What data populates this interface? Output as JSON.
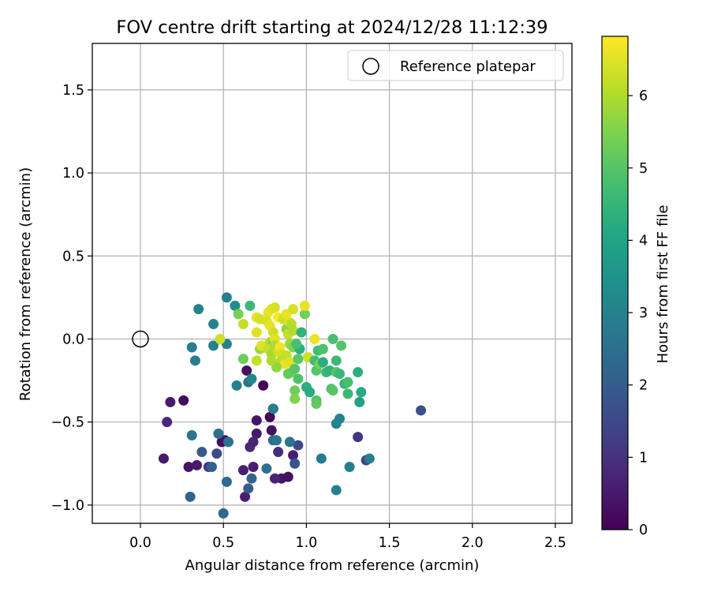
{
  "chart_data": {
    "type": "scatter",
    "title": "FOV centre drift starting at 2024/12/28 11:12:39",
    "xlabel": "Angular distance from reference (arcmin)",
    "ylabel": "Rotation from reference (arcmin)",
    "xlim": [
      -0.29,
      2.6
    ],
    "ylim": [
      -1.11,
      1.78
    ],
    "xticks": [
      0.0,
      0.5,
      1.0,
      1.5,
      2.0,
      2.5
    ],
    "xtick_labels": [
      "0.0",
      "0.5",
      "1.0",
      "1.5",
      "2.0",
      "2.5"
    ],
    "yticks": [
      -1.0,
      -0.5,
      0.0,
      0.5,
      1.0,
      1.5
    ],
    "ytick_labels": [
      "−1.0",
      "−0.5",
      "0.0",
      "0.5",
      "1.0",
      "1.5"
    ],
    "grid": true,
    "legend": {
      "position": "upper right",
      "entries": [
        {
          "label": "Reference platepar",
          "marker": "open-circle"
        }
      ]
    },
    "reference_point": {
      "x": 0.0,
      "y": 0.0
    },
    "colorbar": {
      "label": "Hours from first FF file",
      "colormap": "viridis",
      "range": [
        0,
        6.82
      ],
      "ticks": [
        0,
        1,
        2,
        3,
        4,
        5,
        6
      ],
      "tick_labels": [
        "0",
        "1",
        "2",
        "3",
        "4",
        "5",
        "6"
      ]
    },
    "points": [
      {
        "x": 0.85,
        "y": -0.84,
        "t": 0.4
      },
      {
        "x": 0.89,
        "y": -0.83,
        "t": 0.3
      },
      {
        "x": 0.92,
        "y": -0.7,
        "t": 0.6
      },
      {
        "x": 0.7,
        "y": -0.57,
        "t": 0.5
      },
      {
        "x": 0.7,
        "y": -0.49,
        "t": 0.4
      },
      {
        "x": 0.79,
        "y": -0.55,
        "t": 0.3
      },
      {
        "x": 0.78,
        "y": -0.47,
        "t": 0.1
      },
      {
        "x": 0.8,
        "y": -0.42,
        "t": 0.2
      },
      {
        "x": 0.74,
        "y": -0.28,
        "t": 0.1
      },
      {
        "x": 0.64,
        "y": -0.19,
        "t": 0.3
      },
      {
        "x": 0.18,
        "y": -0.38,
        "t": 0.5
      },
      {
        "x": 0.26,
        "y": -0.37,
        "t": 0.2
      },
      {
        "x": 0.16,
        "y": -0.5,
        "t": 0.8
      },
      {
        "x": 0.14,
        "y": -0.72,
        "t": 0.5
      },
      {
        "x": 0.29,
        "y": -0.77,
        "t": 0.4
      },
      {
        "x": 0.34,
        "y": -0.76,
        "t": 0.5
      },
      {
        "x": 0.41,
        "y": -0.77,
        "t": 1.2
      },
      {
        "x": 0.49,
        "y": -0.62,
        "t": 0.2
      },
      {
        "x": 0.51,
        "y": -0.61,
        "t": 0.3
      },
      {
        "x": 0.62,
        "y": -0.79,
        "t": 0.6
      },
      {
        "x": 0.68,
        "y": -0.77,
        "t": 0.6
      },
      {
        "x": 0.63,
        "y": -0.95,
        "t": 0.6
      },
      {
        "x": 0.66,
        "y": -0.65,
        "t": 0.8
      },
      {
        "x": 0.68,
        "y": -0.62,
        "t": 0.7
      },
      {
        "x": 0.81,
        "y": -0.84,
        "t": 0.7
      },
      {
        "x": 0.83,
        "y": -0.68,
        "t": 0.9
      },
      {
        "x": 1.31,
        "y": -0.59,
        "t": 1.1
      },
      {
        "x": 1.36,
        "y": -0.73,
        "t": 1.3
      },
      {
        "x": 0.93,
        "y": -0.75,
        "t": 1.8
      },
      {
        "x": 0.95,
        "y": -0.64,
        "t": 1.5
      },
      {
        "x": 0.46,
        "y": -0.69,
        "t": 1.6
      },
      {
        "x": 0.37,
        "y": -0.68,
        "t": 2.0
      },
      {
        "x": 0.43,
        "y": -0.77,
        "t": 2.1
      },
      {
        "x": 0.3,
        "y": -0.95,
        "t": 2.2
      },
      {
        "x": 0.5,
        "y": -1.05,
        "t": 2.3
      },
      {
        "x": 0.52,
        "y": -0.86,
        "t": 2.4
      },
      {
        "x": 0.65,
        "y": -0.9,
        "t": 2.0
      },
      {
        "x": 0.67,
        "y": -0.84,
        "t": 2.2
      },
      {
        "x": 0.76,
        "y": -0.78,
        "t": 2.5
      },
      {
        "x": 0.9,
        "y": -0.62,
        "t": 2.6
      },
      {
        "x": 0.8,
        "y": -0.61,
        "t": 2.4
      },
      {
        "x": 1.69,
        "y": -0.43,
        "t": 1.7
      },
      {
        "x": 0.31,
        "y": -0.58,
        "t": 2.6
      },
      {
        "x": 0.47,
        "y": -0.57,
        "t": 2.5
      },
      {
        "x": 0.53,
        "y": -0.62,
        "t": 2.6
      },
      {
        "x": 1.09,
        "y": -0.72,
        "t": 2.8
      },
      {
        "x": 1.18,
        "y": -0.91,
        "t": 3.0
      },
      {
        "x": 1.26,
        "y": -0.77,
        "t": 2.9
      },
      {
        "x": 1.38,
        "y": -0.72,
        "t": 2.9
      },
      {
        "x": 1.18,
        "y": -0.51,
        "t": 3.1
      },
      {
        "x": 1.2,
        "y": -0.48,
        "t": 3.0
      },
      {
        "x": 0.8,
        "y": -0.42,
        "t": 2.9
      },
      {
        "x": 0.82,
        "y": -0.61,
        "t": 2.7
      },
      {
        "x": 0.58,
        "y": -0.28,
        "t": 3.0
      },
      {
        "x": 0.65,
        "y": -0.26,
        "t": 2.6
      },
      {
        "x": 0.67,
        "y": -0.24,
        "t": 3.1
      },
      {
        "x": 0.33,
        "y": -0.13,
        "t": 2.9
      },
      {
        "x": 0.31,
        "y": -0.05,
        "t": 2.9
      },
      {
        "x": 0.44,
        "y": -0.04,
        "t": 3.0
      },
      {
        "x": 0.52,
        "y": -0.03,
        "t": 3.0
      },
      {
        "x": 0.44,
        "y": 0.09,
        "t": 3.0
      },
      {
        "x": 0.35,
        "y": 0.18,
        "t": 3.0
      },
      {
        "x": 0.52,
        "y": 0.25,
        "t": 2.9
      },
      {
        "x": 0.57,
        "y": 0.2,
        "t": 3.3
      },
      {
        "x": 0.66,
        "y": 0.2,
        "t": 4.6
      },
      {
        "x": 0.59,
        "y": 0.15,
        "t": 5.4
      },
      {
        "x": 0.62,
        "y": 0.09,
        "t": 6.2
      },
      {
        "x": 0.48,
        "y": 0.0,
        "t": 6.3
      },
      {
        "x": 0.62,
        "y": -0.12,
        "t": 5.3
      },
      {
        "x": 0.7,
        "y": -0.13,
        "t": 6.2
      },
      {
        "x": 0.7,
        "y": 0.13,
        "t": 6.6
      },
      {
        "x": 0.72,
        "y": 0.12,
        "t": 6.4
      },
      {
        "x": 0.7,
        "y": 0.04,
        "t": 6.5
      },
      {
        "x": 0.72,
        "y": -0.06,
        "t": 5.8
      },
      {
        "x": 0.73,
        "y": -0.04,
        "t": 6.5
      },
      {
        "x": 0.77,
        "y": 0.16,
        "t": 6.6
      },
      {
        "x": 0.79,
        "y": 0.18,
        "t": 6.5
      },
      {
        "x": 0.81,
        "y": 0.19,
        "t": 6.4
      },
      {
        "x": 0.83,
        "y": 0.13,
        "t": 6.8
      },
      {
        "x": 0.76,
        "y": 0.11,
        "t": 6.4
      },
      {
        "x": 0.78,
        "y": 0.08,
        "t": 6.6
      },
      {
        "x": 0.8,
        "y": 0.04,
        "t": 6.3
      },
      {
        "x": 0.78,
        "y": -0.02,
        "t": 6.1
      },
      {
        "x": 0.8,
        "y": -0.02,
        "t": 5.6
      },
      {
        "x": 0.81,
        "y": 0.0,
        "t": 6.5
      },
      {
        "x": 0.77,
        "y": -0.06,
        "t": 6.2
      },
      {
        "x": 0.79,
        "y": -0.09,
        "t": 5.9
      },
      {
        "x": 0.81,
        "y": -0.04,
        "t": 6.0
      },
      {
        "x": 0.83,
        "y": -0.08,
        "t": 6.3
      },
      {
        "x": 0.84,
        "y": -0.05,
        "t": 6.7
      },
      {
        "x": 0.85,
        "y": -0.09,
        "t": 6.4
      },
      {
        "x": 0.85,
        "y": -0.13,
        "t": 6.1
      },
      {
        "x": 0.87,
        "y": -0.15,
        "t": 6.6
      },
      {
        "x": 0.82,
        "y": -0.17,
        "t": 5.7
      },
      {
        "x": 0.79,
        "y": -0.13,
        "t": 6.0
      },
      {
        "x": 0.86,
        "y": 0.12,
        "t": 6.3
      },
      {
        "x": 0.88,
        "y": 0.15,
        "t": 6.6
      },
      {
        "x": 0.88,
        "y": 0.06,
        "t": 5.6
      },
      {
        "x": 0.9,
        "y": 0.1,
        "t": 6.5
      },
      {
        "x": 0.91,
        "y": 0.09,
        "t": 6.1
      },
      {
        "x": 0.92,
        "y": 0.18,
        "t": 6.4
      },
      {
        "x": 0.89,
        "y": 0.03,
        "t": 6.2
      },
      {
        "x": 0.92,
        "y": 0.05,
        "t": 6.0
      },
      {
        "x": 0.9,
        "y": -0.03,
        "t": 5.8
      },
      {
        "x": 0.92,
        "y": -0.05,
        "t": 5.5
      },
      {
        "x": 0.88,
        "y": -0.1,
        "t": 6.2
      },
      {
        "x": 0.9,
        "y": -0.14,
        "t": 6.5
      },
      {
        "x": 0.91,
        "y": -0.2,
        "t": 5.6
      },
      {
        "x": 0.89,
        "y": -0.21,
        "t": 5.2
      },
      {
        "x": 0.93,
        "y": -0.18,
        "t": 5.0
      },
      {
        "x": 0.95,
        "y": -0.24,
        "t": 4.9
      },
      {
        "x": 0.93,
        "y": -0.31,
        "t": 5.3
      },
      {
        "x": 0.93,
        "y": -0.36,
        "t": 5.5
      },
      {
        "x": 0.95,
        "y": -0.12,
        "t": 5.1
      },
      {
        "x": 0.96,
        "y": -0.06,
        "t": 4.3
      },
      {
        "x": 0.94,
        "y": -0.03,
        "t": 4.8
      },
      {
        "x": 0.97,
        "y": 0.04,
        "t": 4.4
      },
      {
        "x": 0.99,
        "y": 0.15,
        "t": 5.4
      },
      {
        "x": 0.99,
        "y": 0.2,
        "t": 6.6
      },
      {
        "x": 1.01,
        "y": -0.11,
        "t": 6.3
      },
      {
        "x": 1.0,
        "y": -0.29,
        "t": 4.3
      },
      {
        "x": 1.02,
        "y": -0.32,
        "t": 4.2
      },
      {
        "x": 1.05,
        "y": 0.0,
        "t": 6.6
      },
      {
        "x": 1.05,
        "y": -0.13,
        "t": 4.7
      },
      {
        "x": 1.07,
        "y": -0.07,
        "t": 4.7
      },
      {
        "x": 1.06,
        "y": -0.19,
        "t": 5.0
      },
      {
        "x": 1.08,
        "y": -0.15,
        "t": 5.4
      },
      {
        "x": 1.06,
        "y": -0.37,
        "t": 4.9
      },
      {
        "x": 1.06,
        "y": -0.39,
        "t": 5.2
      },
      {
        "x": 1.1,
        "y": -0.06,
        "t": 4.9
      },
      {
        "x": 1.1,
        "y": -0.14,
        "t": 4.3
      },
      {
        "x": 1.12,
        "y": -0.2,
        "t": 4.6
      },
      {
        "x": 1.14,
        "y": -0.19,
        "t": 4.4
      },
      {
        "x": 1.15,
        "y": -0.3,
        "t": 4.9
      },
      {
        "x": 1.16,
        "y": -0.31,
        "t": 5.0
      },
      {
        "x": 1.16,
        "y": 0.0,
        "t": 4.8
      },
      {
        "x": 1.18,
        "y": -0.13,
        "t": 4.6
      },
      {
        "x": 1.18,
        "y": -0.2,
        "t": 5.0
      },
      {
        "x": 1.2,
        "y": -0.21,
        "t": 4.6
      },
      {
        "x": 1.21,
        "y": -0.04,
        "t": 5.0
      },
      {
        "x": 1.23,
        "y": -0.27,
        "t": 4.5
      },
      {
        "x": 1.25,
        "y": -0.26,
        "t": 4.8
      },
      {
        "x": 1.25,
        "y": -0.33,
        "t": 4.6
      },
      {
        "x": 1.31,
        "y": -0.2,
        "t": 4.3
      },
      {
        "x": 1.32,
        "y": -0.38,
        "t": 3.9
      },
      {
        "x": 1.33,
        "y": -0.32,
        "t": 4.2
      }
    ]
  }
}
